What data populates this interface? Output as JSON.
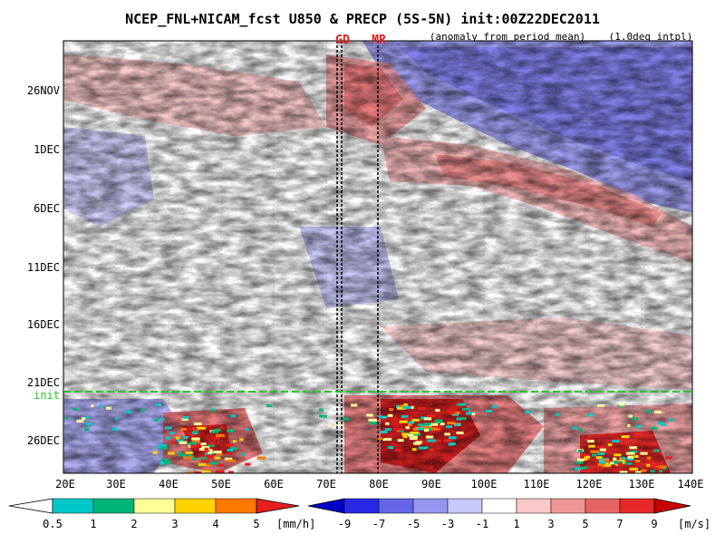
{
  "chart_data": {
    "type": "heatmap",
    "title": "NCEP_FNL+NICAM_fcst U850 & PRECP (5S-5N) init:00Z22DEC2011",
    "subtitle": "(anomaly from period mean)",
    "note": "(1.0deg intpl)",
    "x_ticks": [
      "20E",
      "30E",
      "40E",
      "50E",
      "60E",
      "70E",
      "80E",
      "90E",
      "100E",
      "110E",
      "120E",
      "130E",
      "140E"
    ],
    "y_ticks": [
      "26NOV",
      "1DEC",
      "6DEC",
      "11DEC",
      "16DEC",
      "21DEC",
      "26DEC"
    ],
    "init_label": "init",
    "x_range": [
      20,
      140
    ],
    "y_range_days": [
      "2011-11-22",
      "2011-12-28"
    ],
    "init_date": "2011-12-22",
    "vertical_markers": [
      {
        "label": "GD",
        "lon": 73
      },
      {
        "label": "MR",
        "lon": 80
      }
    ],
    "precip_colorbar": {
      "labels": [
        "0.5",
        "1",
        "2",
        "3",
        "4",
        "5"
      ],
      "unit": "[mm/h]",
      "colors": [
        "#ffffff",
        "#00c8c8",
        "#00b478",
        "#ffff96",
        "#ffd200",
        "#ff7800",
        "#e61e1e"
      ]
    },
    "wind_colorbar": {
      "labels": [
        "-9",
        "-7",
        "-5",
        "-3",
        "-1",
        "1",
        "3",
        "5",
        "7",
        "9"
      ],
      "unit": "[m/s]",
      "colors": [
        "#0000c8",
        "#2828e6",
        "#6464e6",
        "#9696f0",
        "#c8c8fa",
        "#ffffff",
        "#fac8c8",
        "#f09696",
        "#e66464",
        "#e62828",
        "#c80000"
      ]
    },
    "westerly_bands": [
      {
        "start": "2011-11-23",
        "from_lon": 72,
        "to_lon": 84
      },
      {
        "start": "2011-11-30",
        "from_lon": 80,
        "to_lon": 140,
        "end": "2011-12-08"
      }
    ],
    "forecast_precip_centers": [
      {
        "lon": 47,
        "date": "2011-12-26"
      },
      {
        "lon": 88,
        "date": "2011-12-24"
      },
      {
        "lon": 125,
        "date": "2011-12-27"
      }
    ]
  }
}
